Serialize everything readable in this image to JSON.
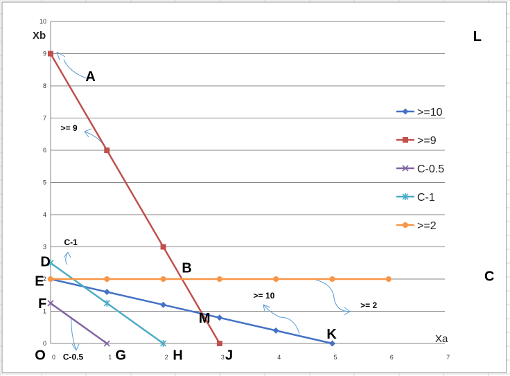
{
  "chart_data": {
    "type": "line",
    "xlabel": "Xa",
    "ylabel": "Xb",
    "xlim": [
      0,
      7
    ],
    "ylim": [
      0,
      10
    ],
    "x_ticks": [
      "0",
      "1",
      "2",
      "3",
      "4",
      "5",
      "6",
      "7"
    ],
    "y_ticks": [
      "0",
      "1",
      "2",
      "3",
      "4",
      "5",
      "6",
      "7",
      "8",
      "9",
      "10"
    ],
    "grid": "horizontal",
    "legend_position": "right",
    "series": [
      {
        "name": ">=10",
        "color": "#4472C4",
        "marker": "diamond",
        "points": [
          [
            0,
            2
          ],
          [
            1,
            1.6
          ],
          [
            2,
            1.2
          ],
          [
            3,
            0.8
          ],
          [
            4,
            0.4
          ],
          [
            5,
            0
          ]
        ]
      },
      {
        "name": ">=9",
        "color": "#C0504D",
        "marker": "square",
        "points": [
          [
            0,
            9
          ],
          [
            1,
            6
          ],
          [
            2,
            3
          ],
          [
            3,
            0
          ]
        ]
      },
      {
        "name": "C-0.5",
        "color": "#8064A2",
        "marker": "x",
        "points": [
          [
            0,
            1.25
          ],
          [
            1,
            0
          ]
        ]
      },
      {
        "name": "C-1",
        "color": "#4BACC6",
        "marker": "star",
        "points": [
          [
            0,
            2.5
          ],
          [
            1,
            1.25
          ],
          [
            2,
            0
          ]
        ]
      },
      {
        "name": ">=2",
        "color": "#F79646",
        "marker": "circle",
        "points": [
          [
            0,
            2
          ],
          [
            1,
            2
          ],
          [
            2,
            2
          ],
          [
            3,
            2
          ],
          [
            4,
            2
          ],
          [
            5,
            2
          ],
          [
            6,
            2
          ]
        ]
      }
    ],
    "point_labels": [
      {
        "text": "A",
        "x": 0.62,
        "y": 8.15
      },
      {
        "text": "B",
        "x": 2.33,
        "y": 2.2
      },
      {
        "text": "C",
        "x": 7.7,
        "y": 1.95
      },
      {
        "text": "D",
        "x": -0.18,
        "y": 2.4
      },
      {
        "text": "E",
        "x": -0.28,
        "y": 1.8
      },
      {
        "text": "F",
        "x": -0.22,
        "y": 1.1
      },
      {
        "text": "G",
        "x": 1.15,
        "y": -0.5
      },
      {
        "text": "H",
        "x": 2.17,
        "y": -0.5
      },
      {
        "text": "J",
        "x": 3.1,
        "y": -0.5
      },
      {
        "text": "K",
        "x": 4.9,
        "y": 0.15
      },
      {
        "text": "L",
        "x": 7.5,
        "y": 9.4
      },
      {
        "text": "M",
        "x": 2.63,
        "y": 0.65
      },
      {
        "text": "O",
        "x": -0.28,
        "y": -0.5
      }
    ],
    "annotations": [
      {
        "text": ">= 9",
        "x": 0.18,
        "y": 6.6
      },
      {
        "text": "C-1",
        "x": 0.24,
        "y": 3.05
      },
      {
        "text": ">= 10",
        "x": 3.6,
        "y": 1.4
      },
      {
        "text": ">= 2",
        "x": 5.5,
        "y": 1.1
      },
      {
        "text": "C-0.5",
        "x": 0.22,
        "y": -0.5
      }
    ]
  }
}
